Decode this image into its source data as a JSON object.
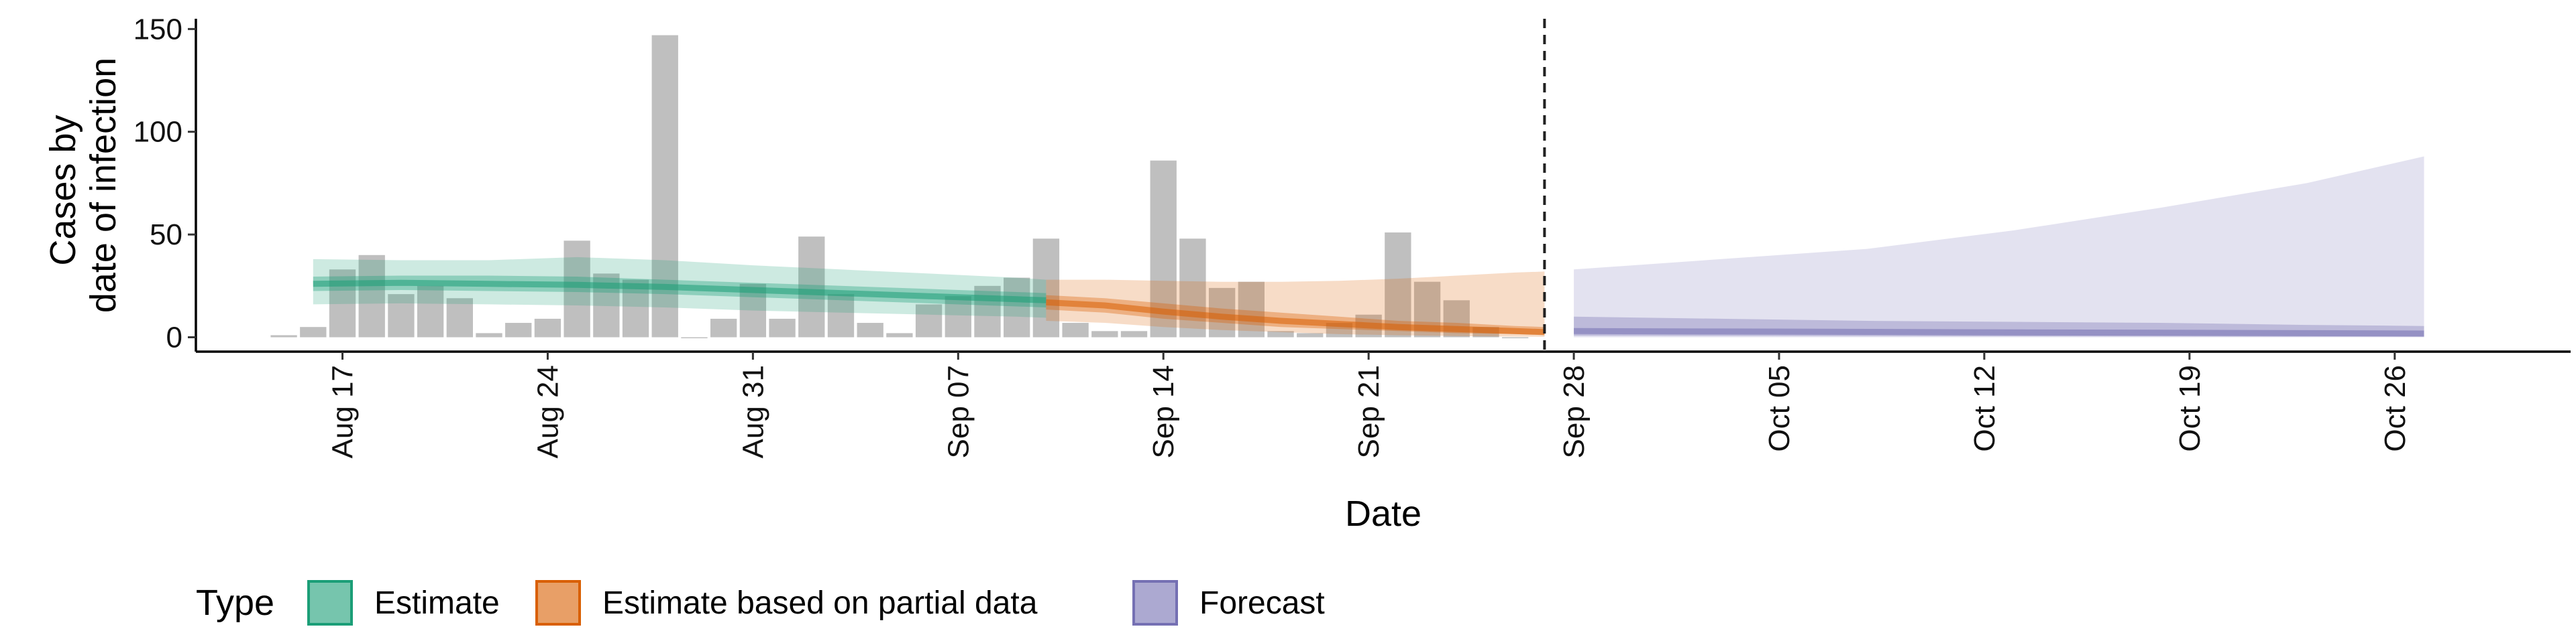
{
  "chart_data": {
    "type": "bar",
    "title": "",
    "xlabel": "Date",
    "ylabel_lines": [
      "Cases by",
      "date of infection"
    ],
    "x_range": [
      "2020-08-12",
      "2020-11-01"
    ],
    "ylim": [
      -7,
      155
    ],
    "y_ticks": [
      0,
      50,
      100,
      150
    ],
    "x_ticks": [
      {
        "date": "2020-08-17",
        "label": "Aug 17"
      },
      {
        "date": "2020-08-24",
        "label": "Aug 24"
      },
      {
        "date": "2020-08-31",
        "label": "Aug 31"
      },
      {
        "date": "2020-09-07",
        "label": "Sep 07"
      },
      {
        "date": "2020-09-14",
        "label": "Sep 14"
      },
      {
        "date": "2020-09-21",
        "label": "Sep 21"
      },
      {
        "date": "2020-09-28",
        "label": "Sep 28"
      },
      {
        "date": "2020-10-05",
        "label": "Oct 05"
      },
      {
        "date": "2020-10-12",
        "label": "Oct 12"
      },
      {
        "date": "2020-10-19",
        "label": "Oct 19"
      },
      {
        "date": "2020-10-26",
        "label": "Oct 26"
      }
    ],
    "forecast_start": "2020-09-27",
    "reported_cases": {
      "dates": [
        "2020-08-15",
        "2020-08-16",
        "2020-08-17",
        "2020-08-18",
        "2020-08-19",
        "2020-08-20",
        "2020-08-21",
        "2020-08-22",
        "2020-08-23",
        "2020-08-24",
        "2020-08-25",
        "2020-08-26",
        "2020-08-27",
        "2020-08-28",
        "2020-08-29",
        "2020-08-30",
        "2020-08-31",
        "2020-09-01",
        "2020-09-02",
        "2020-09-03",
        "2020-09-04",
        "2020-09-05",
        "2020-09-06",
        "2020-09-07",
        "2020-09-08",
        "2020-09-09",
        "2020-09-10",
        "2020-09-11",
        "2020-09-12",
        "2020-09-13",
        "2020-09-14",
        "2020-09-15",
        "2020-09-16",
        "2020-09-17",
        "2020-09-18",
        "2020-09-19",
        "2020-09-20",
        "2020-09-21",
        "2020-09-22",
        "2020-09-23",
        "2020-09-24",
        "2020-09-25",
        "2020-09-26"
      ],
      "values": [
        1,
        5,
        33,
        40,
        21,
        25,
        19,
        2,
        7,
        9,
        47,
        31,
        28,
        147,
        0,
        9,
        26,
        9,
        49,
        21,
        7,
        2,
        16,
        20,
        25,
        29,
        48,
        7,
        3,
        3,
        86,
        48,
        24,
        27,
        3,
        2,
        7,
        11,
        51,
        27,
        18,
        5,
        0
      ]
    },
    "series": [
      {
        "name": "Estimate",
        "color": "#1b9e77",
        "dates": [
          "2020-08-16",
          "2020-08-19",
          "2020-08-22",
          "2020-08-25",
          "2020-08-28",
          "2020-08-31",
          "2020-09-03",
          "2020-09-06",
          "2020-09-09",
          "2020-09-10"
        ],
        "median": [
          26,
          26.5,
          26,
          25.5,
          24.5,
          23,
          21.5,
          20,
          18.5,
          18
        ],
        "lower50": [
          22.5,
          23,
          22.5,
          22,
          21,
          19.5,
          18,
          16.5,
          15,
          14.5
        ],
        "upper50": [
          29.5,
          30,
          30,
          29.5,
          28,
          26.5,
          25,
          23.5,
          22,
          21.5
        ],
        "lower90": [
          16,
          16.5,
          16,
          15.5,
          14.5,
          13,
          12,
          11,
          10,
          9.5
        ],
        "upper90": [
          38,
          37.5,
          37.5,
          39,
          37.5,
          35,
          33,
          31,
          29,
          28
        ]
      },
      {
        "name": "Estimate based on partial data",
        "color": "#d95f02",
        "dates": [
          "2020-09-10",
          "2020-09-12",
          "2020-09-14",
          "2020-09-16",
          "2020-09-18",
          "2020-09-20",
          "2020-09-22",
          "2020-09-24",
          "2020-09-26",
          "2020-09-27"
        ],
        "median": [
          17,
          15.5,
          12.5,
          10,
          8,
          6.5,
          5,
          4,
          3,
          2.5
        ],
        "lower50": [
          13.5,
          12,
          9,
          7,
          5,
          4,
          3,
          2,
          1.5,
          1.2
        ],
        "upper50": [
          20.5,
          19,
          16.5,
          14,
          12,
          10,
          8,
          7,
          5.5,
          5
        ],
        "lower90": [
          8,
          7,
          5,
          3.5,
          2.5,
          1.5,
          1,
          0.6,
          0.3,
          0.2
        ],
        "upper90": [
          28,
          28,
          27.5,
          27,
          27,
          27.5,
          28.5,
          30,
          31.5,
          32
        ]
      },
      {
        "name": "Forecast",
        "color": "#7570b3",
        "dates": [
          "2020-09-28",
          "2020-10-03",
          "2020-10-08",
          "2020-10-13",
          "2020-10-18",
          "2020-10-23",
          "2020-10-27"
        ],
        "median": [
          3,
          2.8,
          2.6,
          2.4,
          2.2,
          2.0,
          1.8
        ],
        "lower50": [
          0.8,
          0.7,
          0.6,
          0.5,
          0.4,
          0.3,
          0.3
        ],
        "upper50": [
          10,
          9,
          8,
          7.5,
          7,
          6,
          5.5
        ],
        "lower90": [
          0,
          0,
          0,
          0,
          0,
          0,
          0
        ],
        "upper90": [
          33,
          38,
          43,
          52,
          63,
          75,
          88
        ]
      }
    ],
    "legend": {
      "title": "Type",
      "placement": "bottom",
      "items": [
        {
          "label": "Estimate",
          "color": "#1b9e77"
        },
        {
          "label": "Estimate based on partial data",
          "color": "#d95f02"
        },
        {
          "label": "Forecast",
          "color": "#7570b3"
        }
      ]
    }
  }
}
